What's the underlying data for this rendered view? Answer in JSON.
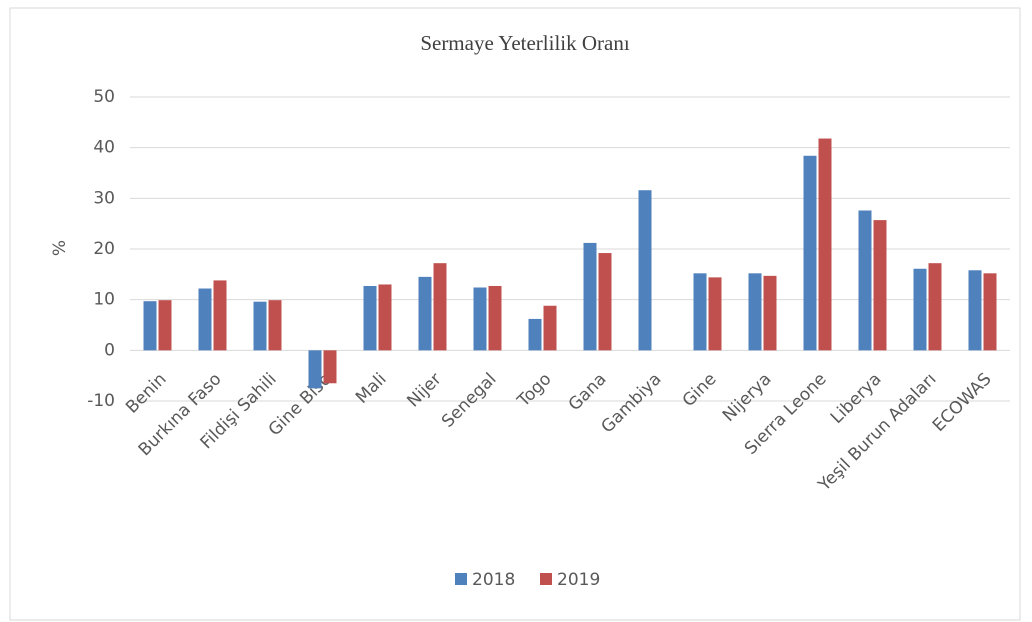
{
  "chart_data": {
    "type": "bar",
    "title": "Sermaye  Yeterlilik  Oranı",
    "y_label": "%",
    "categories": [
      "Benin",
      "Burkına Faso",
      "Fildişi Sahili",
      "Gine Biso",
      "Mali",
      "Nijer",
      "Senegal",
      "Togo",
      "Gana",
      "Gambiya",
      "Gine",
      "Nijerya",
      "Sıerra Leone",
      "Liberya",
      "Yeşil Burun Adaları",
      "ECOWAS"
    ],
    "series": [
      {
        "name": "2018",
        "color": "#4f81bd",
        "values": [
          9.7,
          12.2,
          9.6,
          -7.5,
          12.7,
          14.5,
          12.4,
          6.2,
          21.2,
          31.6,
          15.2,
          15.2,
          38.4,
          27.6,
          16.1,
          15.8
        ]
      },
      {
        "name": "2019",
        "color": "#c0504d",
        "values": [
          9.9,
          13.8,
          9.9,
          -6.5,
          13.0,
          17.2,
          12.7,
          8.8,
          19.2,
          null,
          14.4,
          14.7,
          41.8,
          25.7,
          17.2,
          15.2
        ]
      }
    ],
    "ylim": [
      -10,
      50
    ],
    "yticks": [
      -10,
      0,
      10,
      20,
      30,
      40,
      50
    ],
    "grid": true,
    "legend": "bottom"
  }
}
